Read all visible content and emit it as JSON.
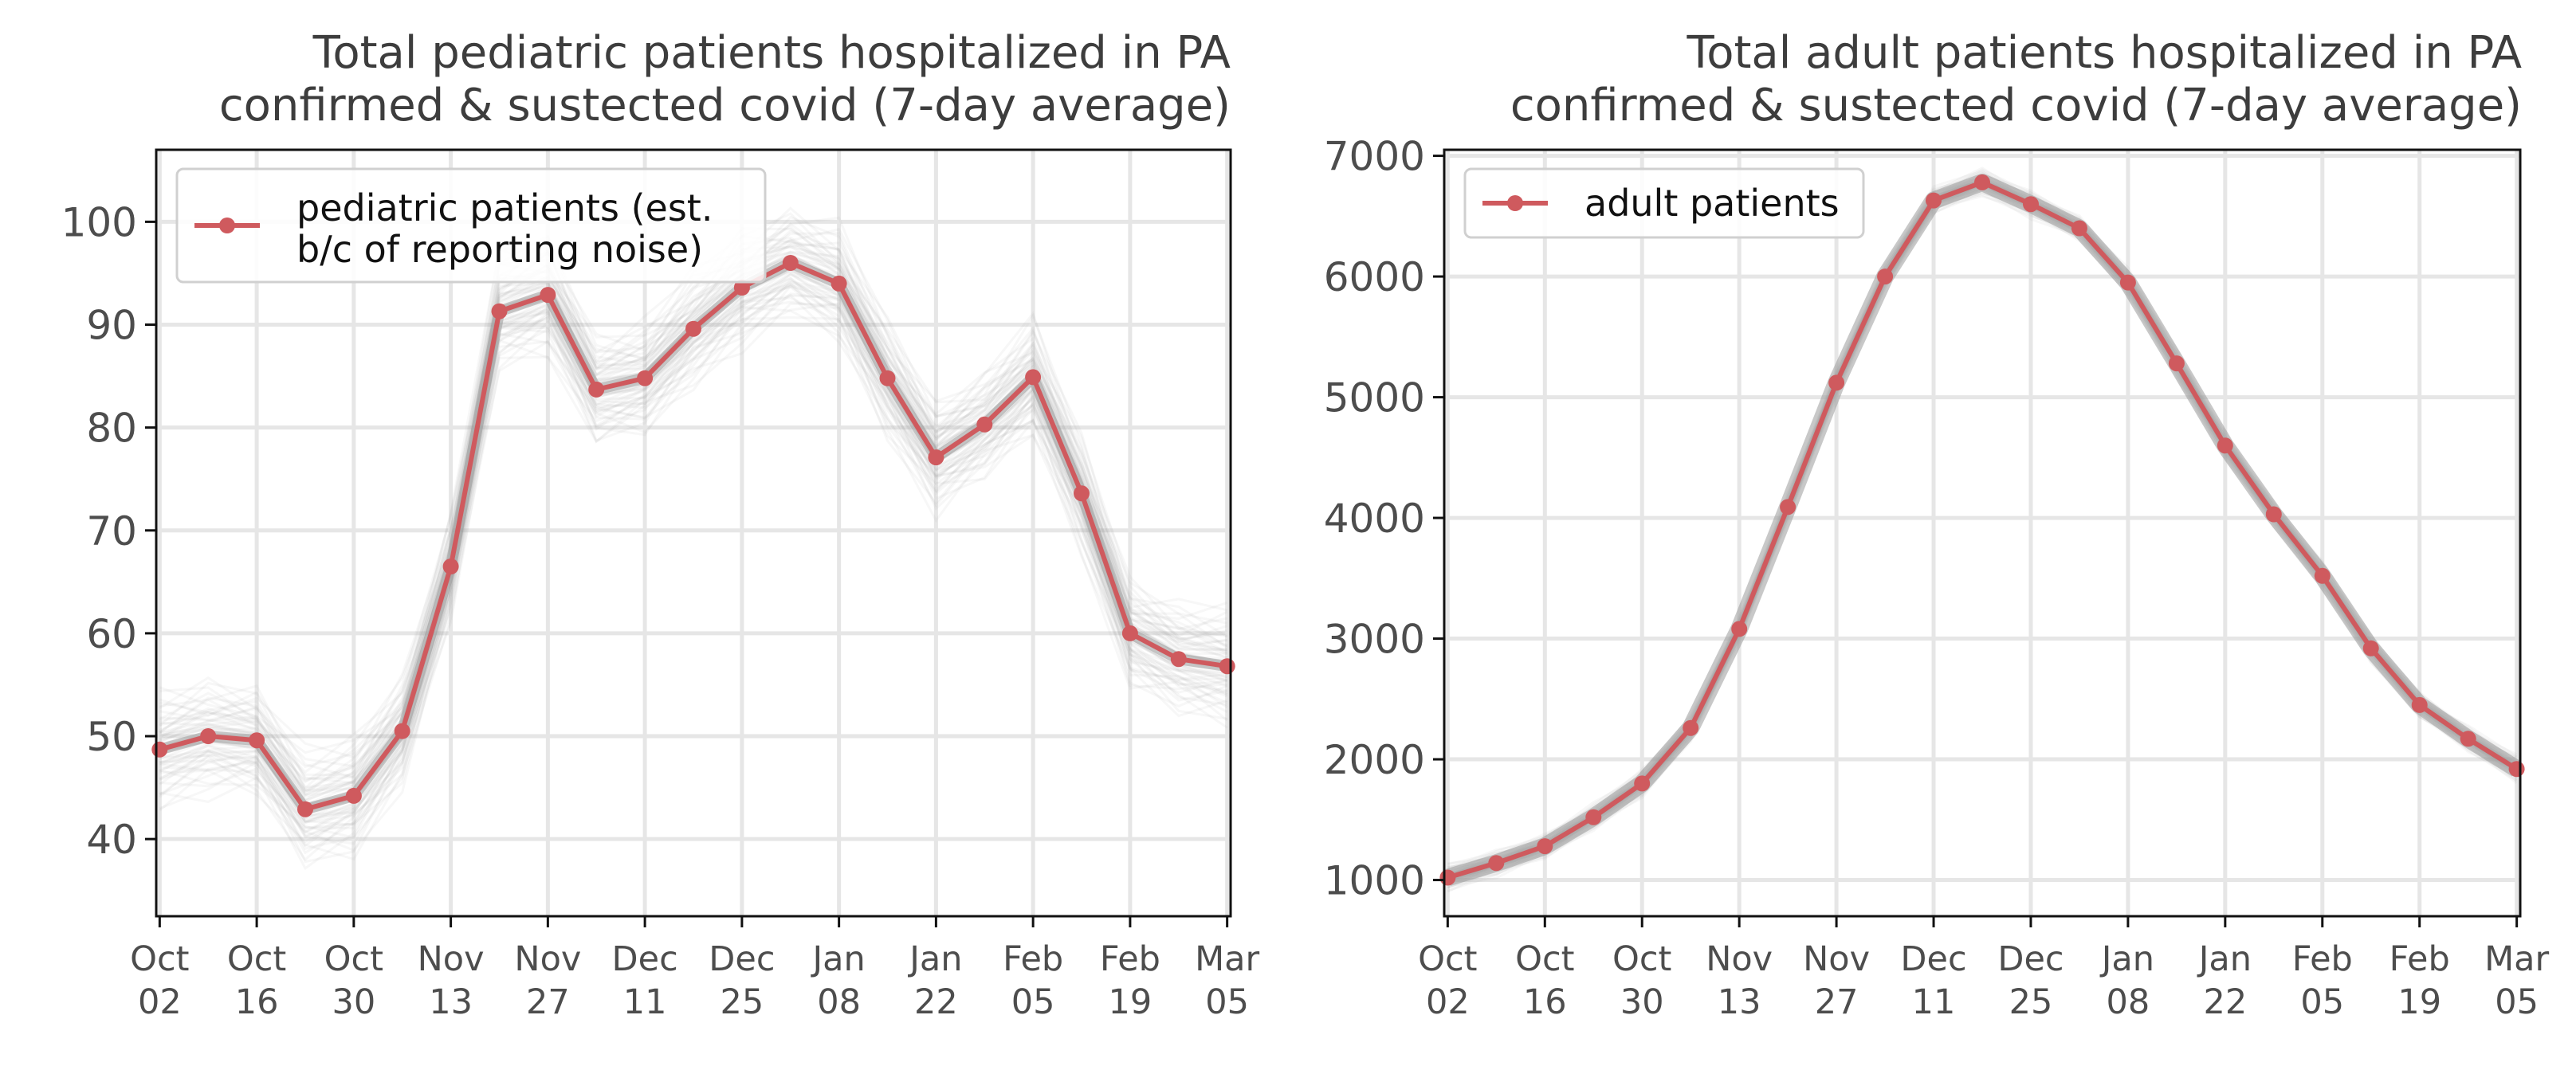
{
  "chart_data": [
    {
      "type": "line",
      "title": "Total pediatric patients hospitalized in PA",
      "subtitle": "confirmed & sustected covid (7-day average)",
      "x": [
        "2021-10-02",
        "2021-10-09",
        "2021-10-16",
        "2021-10-23",
        "2021-10-30",
        "2021-11-06",
        "2021-11-13",
        "2021-11-20",
        "2021-11-27",
        "2021-12-04",
        "2021-12-11",
        "2021-12-18",
        "2021-12-25",
        "2022-01-01",
        "2022-01-08",
        "2022-01-15",
        "2022-01-22",
        "2022-01-29",
        "2022-02-05",
        "2022-02-12",
        "2022-02-19",
        "2022-02-26",
        "2022-03-05"
      ],
      "tick_labels": [
        [
          "Oct",
          "02"
        ],
        [
          "Oct",
          "16"
        ],
        [
          "Oct",
          "30"
        ],
        [
          "Nov",
          "13"
        ],
        [
          "Nov",
          "27"
        ],
        [
          "Dec",
          "11"
        ],
        [
          "Dec",
          "25"
        ],
        [
          "Jan",
          "08"
        ],
        [
          "Jan",
          "22"
        ],
        [
          "Feb",
          "05"
        ],
        [
          "Feb",
          "19"
        ],
        [
          "Mar",
          "05"
        ]
      ],
      "series": [
        {
          "name": "pediatric patients (est. b/c of reporting noise)",
          "values": [
            48.7,
            50.0,
            49.6,
            42.9,
            44.2,
            50.5,
            66.5,
            91.3,
            92.9,
            83.7,
            84.8,
            89.6,
            93.6,
            96.0,
            94.0,
            84.8,
            77.1,
            80.3,
            84.9,
            73.6,
            60.0,
            57.5,
            56.8
          ]
        }
      ],
      "legend_lines": [
        "pediatric patients (est.",
        "b/c of reporting noise)"
      ],
      "legend_position": "top-left",
      "ylim": [
        32.5,
        107
      ],
      "yticks": [
        40,
        50,
        60,
        70,
        80,
        90,
        100
      ],
      "xlabel": "",
      "ylabel": "",
      "grid": true,
      "uncertainty_band": true,
      "colors": {
        "line": "#cf5a5e",
        "band": "#9a9a9a",
        "grid": "#e6e6e6",
        "axis_text": "#4d4d4d"
      }
    },
    {
      "type": "line",
      "title": "Total adult patients hospitalized in PA",
      "subtitle": "confirmed & sustected covid (7-day average)",
      "x": [
        "2021-10-02",
        "2021-10-09",
        "2021-10-16",
        "2021-10-23",
        "2021-10-30",
        "2021-11-06",
        "2021-11-13",
        "2021-11-20",
        "2021-11-27",
        "2021-12-04",
        "2021-12-11",
        "2021-12-18",
        "2021-12-25",
        "2022-01-01",
        "2022-01-08",
        "2022-01-15",
        "2022-01-22",
        "2022-01-29",
        "2022-02-05",
        "2022-02-12",
        "2022-02-19",
        "2022-02-26",
        "2022-03-05"
      ],
      "tick_labels": [
        [
          "Oct",
          "02"
        ],
        [
          "Oct",
          "16"
        ],
        [
          "Oct",
          "30"
        ],
        [
          "Nov",
          "13"
        ],
        [
          "Nov",
          "27"
        ],
        [
          "Dec",
          "11"
        ],
        [
          "Dec",
          "25"
        ],
        [
          "Jan",
          "08"
        ],
        [
          "Jan",
          "22"
        ],
        [
          "Feb",
          "05"
        ],
        [
          "Feb",
          "19"
        ],
        [
          "Mar",
          "05"
        ]
      ],
      "series": [
        {
          "name": "adult patients",
          "values": [
            1020,
            1140,
            1280,
            1520,
            1800,
            2260,
            3080,
            4090,
            5120,
            6000,
            6630,
            6780,
            6600,
            6400,
            5950,
            5280,
            4600,
            4030,
            3520,
            2920,
            2450,
            2170,
            1920
          ]
        }
      ],
      "legend_lines": [
        "adult patients"
      ],
      "legend_position": "top-left",
      "ylim": [
        700,
        7050
      ],
      "yticks": [
        1000,
        2000,
        3000,
        4000,
        5000,
        6000,
        7000
      ],
      "xlabel": "",
      "ylabel": "",
      "grid": true,
      "uncertainty_band": true,
      "colors": {
        "line": "#cf5a5e",
        "band": "#9a9a9a",
        "grid": "#e6e6e6",
        "axis_text": "#4d4d4d"
      }
    }
  ]
}
